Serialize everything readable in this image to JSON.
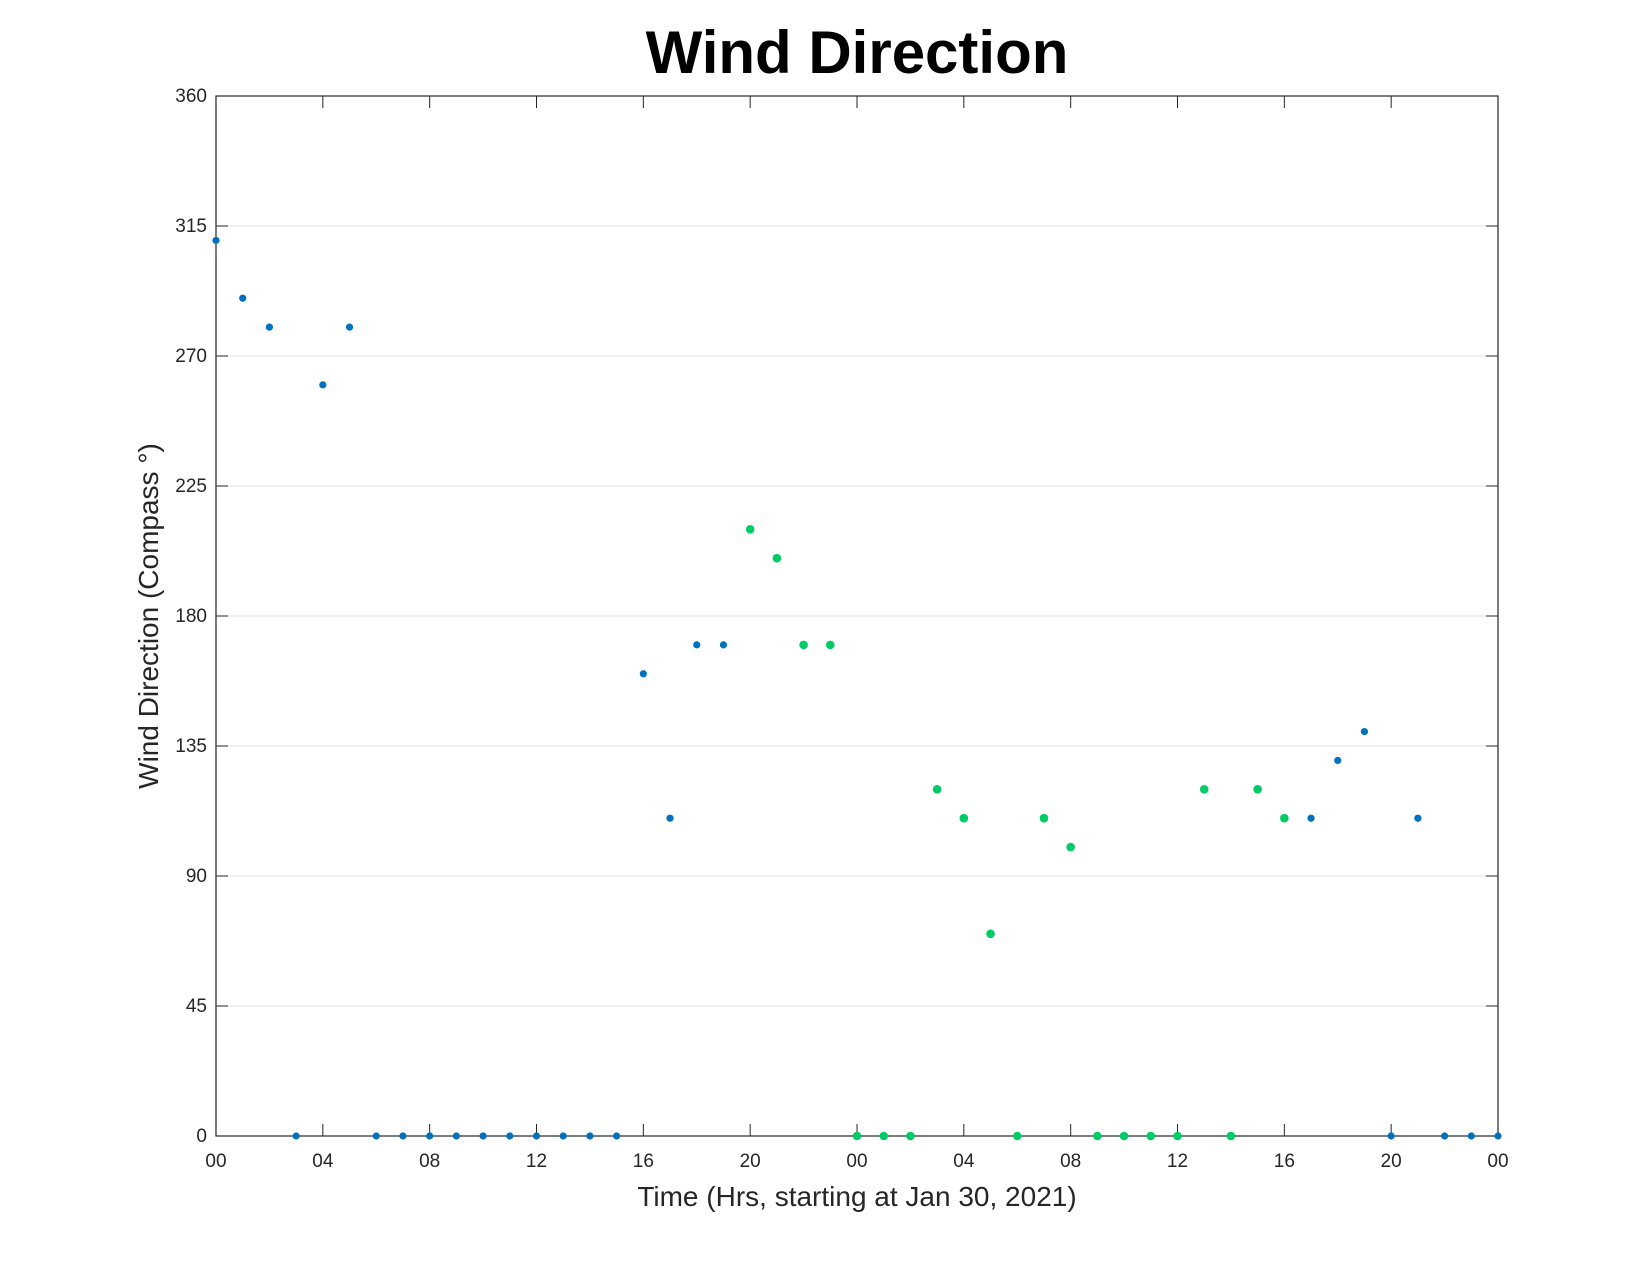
{
  "chart_data": {
    "type": "scatter",
    "title": "Wind Direction",
    "xlabel": "Time (Hrs, starting at Jan 30, 2021)",
    "ylabel": "Wind Direction (Compass °)",
    "x_unit": "hours",
    "xlim": [
      0,
      48
    ],
    "ylim": [
      0,
      360
    ],
    "x_ticks": [
      0,
      4,
      8,
      12,
      16,
      20,
      24,
      28,
      32,
      36,
      40,
      44,
      48
    ],
    "x_tick_labels": [
      "00",
      "04",
      "08",
      "12",
      "16",
      "20",
      "00",
      "04",
      "08",
      "12",
      "16",
      "20",
      "00"
    ],
    "y_ticks": [
      0,
      45,
      90,
      135,
      180,
      225,
      270,
      315,
      360
    ],
    "y_tick_labels": [
      "0",
      "45",
      "90",
      "135",
      "180",
      "225",
      "270",
      "315",
      "360"
    ],
    "grid": "horizontal",
    "colors": {
      "blue": "#0072BD",
      "green": "#00CC66",
      "axis": "#262626",
      "grid": "#e0e0e0"
    },
    "series": [
      {
        "color": "#0072BD",
        "x": [
          0,
          1,
          2,
          3,
          4,
          5,
          6,
          7,
          8,
          9,
          10,
          11,
          12,
          13,
          14,
          15,
          16,
          17,
          18,
          19,
          41,
          42,
          43,
          44,
          45,
          46,
          47,
          48
        ],
        "y": [
          310,
          290,
          280,
          0,
          260,
          280,
          0,
          0,
          0,
          0,
          0,
          0,
          0,
          0,
          0,
          0,
          160,
          110,
          170,
          170,
          110,
          130,
          140,
          0,
          110,
          0,
          0,
          0
        ]
      },
      {
        "color": "#00CC66",
        "x": [
          20,
          21,
          22,
          23,
          24,
          25,
          26,
          27,
          28,
          29,
          30,
          31,
          32,
          33,
          34,
          35,
          36,
          37,
          38,
          39,
          40
        ],
        "y": [
          210,
          200,
          170,
          170,
          0,
          0,
          0,
          120,
          110,
          70,
          0,
          110,
          100,
          0,
          0,
          0,
          0,
          120,
          0,
          120,
          110
        ]
      }
    ]
  }
}
